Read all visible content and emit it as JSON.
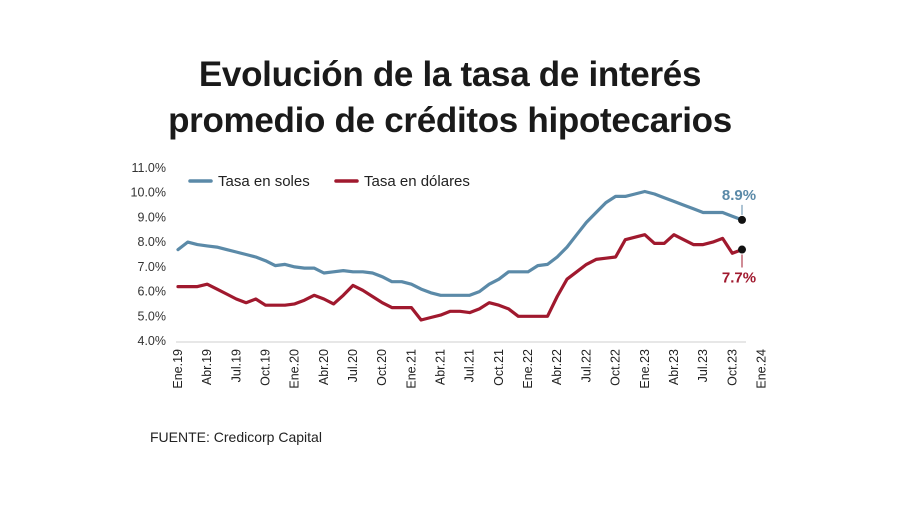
{
  "chart_data": {
    "type": "line",
    "title_lines": [
      "Evolución de la tasa de interés",
      "promedio de créditos hipotecarios"
    ],
    "source": "FUENTE: Credicorp Capital",
    "ylim": [
      4.0,
      11.0
    ],
    "yticks": [
      4,
      5,
      6,
      7,
      8,
      9,
      10,
      11
    ],
    "ytick_labels": [
      "4.0%",
      "5.0%",
      "6.0%",
      "7.0%",
      "8.0%",
      "9.0%",
      "10.0%",
      "11.0%"
    ],
    "x_tick_labels": [
      "Ene.19",
      "Abr.19",
      "Jul.19",
      "Oct.19",
      "Ene.20",
      "Abr.20",
      "Jul.20",
      "Oct.20",
      "Ene.21",
      "Abr.21",
      "Jul.21",
      "Oct.21",
      "Ene.22",
      "Abr.22",
      "Jul.22",
      "Oct.22",
      "Ene.23",
      "Abr.23",
      "Jul.23",
      "Oct.23",
      "Ene.24"
    ],
    "grid": false,
    "legend_position": "top-left",
    "series": [
      {
        "name": "Tasa en soles",
        "color": "#5b8aa8",
        "end_label": "8.9%",
        "values": [
          7.7,
          8.0,
          7.9,
          7.85,
          7.8,
          7.7,
          7.6,
          7.5,
          7.4,
          7.25,
          7.05,
          7.1,
          7.0,
          6.95,
          6.95,
          6.75,
          6.8,
          6.85,
          6.8,
          6.8,
          6.75,
          6.6,
          6.4,
          6.4,
          6.3,
          6.1,
          5.95,
          5.85,
          5.85,
          5.85,
          5.85,
          6.0,
          6.3,
          6.5,
          6.8,
          6.8,
          6.8,
          7.05,
          7.1,
          7.4,
          7.8,
          8.3,
          8.8,
          9.2,
          9.6,
          9.85,
          9.85,
          9.95,
          10.05,
          9.95,
          9.8,
          9.65,
          9.5,
          9.35,
          9.2,
          9.2,
          9.2,
          9.05,
          8.9
        ]
      },
      {
        "name": "Tasa en dólares",
        "color": "#a0192e",
        "end_label": "7.7%",
        "values": [
          6.2,
          6.2,
          6.2,
          6.3,
          6.1,
          5.9,
          5.7,
          5.55,
          5.7,
          5.45,
          5.45,
          5.45,
          5.5,
          5.65,
          5.85,
          5.7,
          5.5,
          5.85,
          6.25,
          6.05,
          5.8,
          5.55,
          5.35,
          5.35,
          5.35,
          4.85,
          4.95,
          5.05,
          5.2,
          5.2,
          5.15,
          5.3,
          5.55,
          5.45,
          5.3,
          5.0,
          5.0,
          5.0,
          5.0,
          5.8,
          6.5,
          6.8,
          7.1,
          7.3,
          7.35,
          7.4,
          8.1,
          8.2,
          8.3,
          7.95,
          7.95,
          8.3,
          8.1,
          7.9,
          7.9,
          8.0,
          8.15,
          7.55,
          7.7
        ]
      }
    ]
  }
}
